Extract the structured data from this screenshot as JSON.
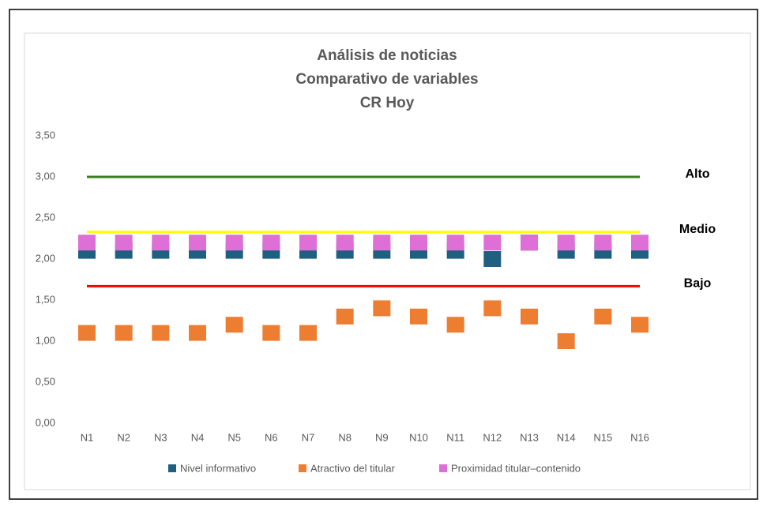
{
  "chart_data": {
    "type": "scatter",
    "title": [
      "Análisis de noticias",
      "Comparativo de variables",
      "CR Hoy"
    ],
    "categories": [
      "N1",
      "N2",
      "N3",
      "N4",
      "N5",
      "N6",
      "N7",
      "N8",
      "N9",
      "N10",
      "N11",
      "N12",
      "N13",
      "N14",
      "N15",
      "N16"
    ],
    "series": [
      {
        "name": "Nivel informativo",
        "color": "#1f5f7f",
        "values": [
          2.1,
          2.1,
          2.1,
          2.1,
          2.1,
          2.1,
          2.1,
          2.1,
          2.1,
          2.1,
          2.1,
          2.0,
          2.2,
          2.1,
          2.1,
          2.1
        ]
      },
      {
        "name": "Atractivo del titular",
        "color": "#ed7d31",
        "values": [
          1.1,
          1.1,
          1.1,
          1.1,
          1.2,
          1.1,
          1.1,
          1.3,
          1.4,
          1.3,
          1.2,
          1.4,
          1.3,
          1.0,
          1.3,
          1.2
        ]
      },
      {
        "name": "Proximidad titular–contenido",
        "color": "#dd6fd6",
        "values": [
          2.2,
          2.2,
          2.2,
          2.2,
          2.2,
          2.2,
          2.2,
          2.2,
          2.2,
          2.2,
          2.2,
          2.2,
          2.2,
          2.2,
          2.2,
          2.2
        ]
      }
    ],
    "reference_lines": [
      {
        "label": "Alto",
        "value": 3.0,
        "color": "#3a7d22"
      },
      {
        "label": "Medio",
        "value": 2.33,
        "color": "#ffff00"
      },
      {
        "label": "Bajo",
        "value": 1.67,
        "color": "#ff0000"
      }
    ],
    "ylim": [
      0,
      3.5
    ],
    "yticks": [
      {
        "value": 0,
        "label": "0,00"
      },
      {
        "value": 0.5,
        "label": "0,50"
      },
      {
        "value": 1,
        "label": "1,00"
      },
      {
        "value": 1.5,
        "label": "1,50"
      },
      {
        "value": 2,
        "label": "2,00"
      },
      {
        "value": 2.5,
        "label": "2,50"
      },
      {
        "value": 3,
        "label": "3,00"
      },
      {
        "value": 3.5,
        "label": "3,50"
      }
    ],
    "grid": false,
    "legend": "bottom"
  }
}
